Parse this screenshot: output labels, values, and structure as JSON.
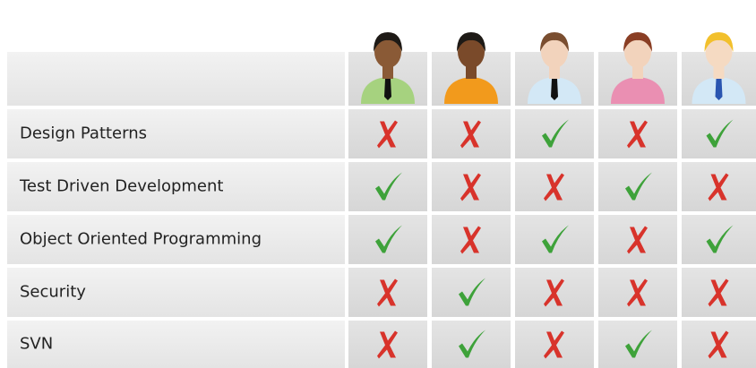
{
  "table": {
    "rows": [
      {
        "label": "Design Patterns",
        "skills": [
          false,
          false,
          true,
          false,
          true
        ]
      },
      {
        "label": "Test Driven Development",
        "skills": [
          true,
          false,
          false,
          true,
          false
        ]
      },
      {
        "label": "Object Oriented Programming",
        "skills": [
          true,
          false,
          true,
          false,
          true
        ]
      },
      {
        "label": "Security",
        "skills": [
          false,
          true,
          false,
          false,
          false
        ]
      },
      {
        "label": "SVN",
        "skills": [
          false,
          true,
          false,
          true,
          false
        ]
      }
    ]
  }
}
